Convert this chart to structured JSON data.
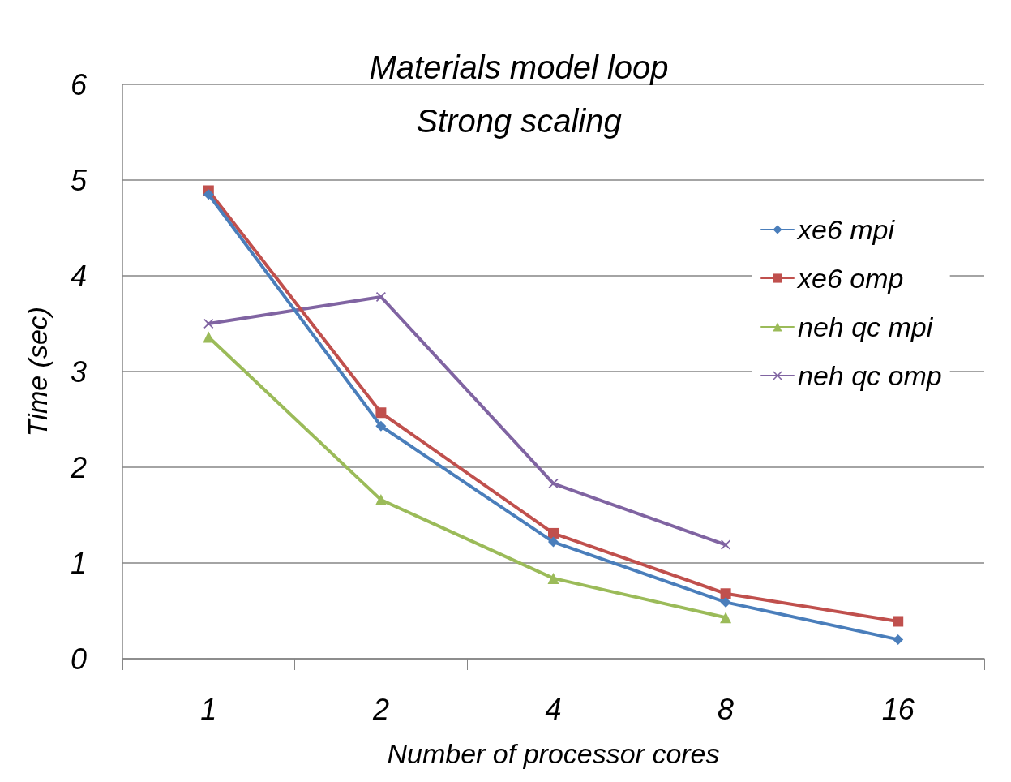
{
  "chart_data": {
    "type": "line",
    "title": "Materials model loop\nStrong scaling",
    "xlabel": "Number of processor cores",
    "ylabel": "Time (sec)",
    "categories": [
      "1",
      "2",
      "4",
      "8",
      "16"
    ],
    "series": [
      {
        "name": "xe6 mpi",
        "color": "#4a7ebb",
        "marker": "diamond",
        "values": [
          4.85,
          2.43,
          1.22,
          0.59,
          0.2
        ]
      },
      {
        "name": "xe6 omp",
        "color": "#c0504d",
        "marker": "square",
        "values": [
          4.89,
          2.57,
          1.31,
          0.68,
          0.39
        ]
      },
      {
        "name": "neh qc mpi",
        "color": "#9bbb59",
        "marker": "triangle",
        "values": [
          3.36,
          1.66,
          0.84,
          0.43,
          null
        ]
      },
      {
        "name": "neh qc omp",
        "color": "#8064a2",
        "marker": "cross",
        "values": [
          3.5,
          3.78,
          1.83,
          1.19,
          null
        ]
      }
    ],
    "ylim": [
      0,
      6
    ],
    "yticks": [
      0,
      1,
      2,
      3,
      4,
      5,
      6
    ],
    "grid": "y",
    "legend": "right",
    "line_style": "solid"
  }
}
